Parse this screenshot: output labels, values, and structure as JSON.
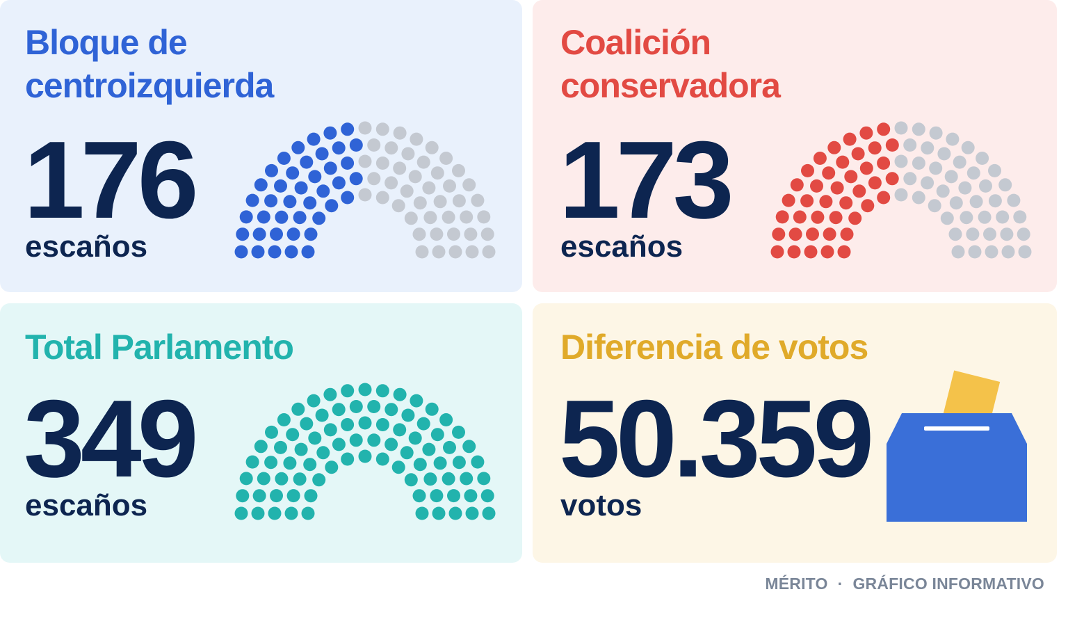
{
  "cards": {
    "left": {
      "title_line1": "Bloque de",
      "title_line2": "centroizquierda",
      "value": "176",
      "unit": "escaños",
      "color": "#2f63d6",
      "filled_fraction": 0.5
    },
    "right": {
      "title_line1": "Coalición",
      "title_line2": "conservadora",
      "value": "173",
      "unit": "escaños",
      "color": "#e24a43",
      "filled_fraction": 0.5
    },
    "total": {
      "title": "Total Parlamento",
      "value": "349",
      "unit": "escaños",
      "color": "#22b3ad",
      "filled_fraction": 1.0
    },
    "diff": {
      "title": "Diferencia de votos",
      "value": "50.359",
      "unit": "votos",
      "color": "#e0aa2a",
      "icon": "ballot-box-icon"
    }
  },
  "colors": {
    "number": "#0d2550",
    "empty_seat": "#c4c9d1",
    "ballot_box": "#3a6fd8",
    "ballot_paper": "#f4c24a"
  },
  "footer": {
    "brand": "MÉRITO",
    "separator": "·",
    "label": "GRÁFICO INFORMATIVO"
  }
}
